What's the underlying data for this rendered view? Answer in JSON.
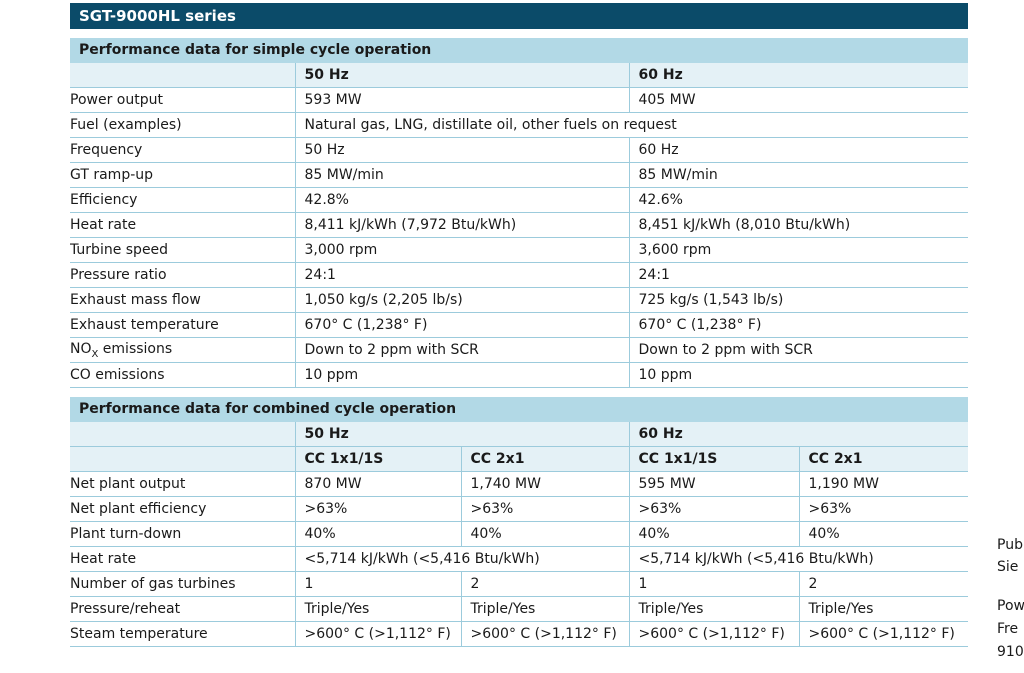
{
  "series_title": "SGT-9000HL series",
  "simple": {
    "title": "Performance data for simple cycle operation",
    "col_50": "50 Hz",
    "col_60": "60 Hz",
    "rows": [
      {
        "label": "Power output",
        "v50": "593 MW",
        "v60": "405 MW"
      },
      {
        "label": "Fuel (examples)",
        "span": "Natural gas, LNG, distillate oil, other fuels on request"
      },
      {
        "label": "Frequency",
        "v50": "50 Hz",
        "v60": "60 Hz"
      },
      {
        "label": "GT ramp-up",
        "v50": "85 MW/min",
        "v60": "85 MW/min"
      },
      {
        "label": "Efficiency",
        "v50": "42.8%",
        "v60": "42.6%"
      },
      {
        "label": "Heat rate",
        "v50": "8,411 kJ/kWh (7,972 Btu/kWh)",
        "v60": "8,451 kJ/kWh (8,010 Btu/kWh)"
      },
      {
        "label": "Turbine speed",
        "v50": "3,000 rpm",
        "v60": "3,600 rpm"
      },
      {
        "label": "Pressure ratio",
        "v50": "24:1",
        "v60": "24:1"
      },
      {
        "label": "Exhaust mass flow",
        "v50": "1,050 kg/s (2,205 lb/s)",
        "v60": "725 kg/s (1,543 lb/s)"
      },
      {
        "label": "Exhaust temperature",
        "v50": "670° C (1,238° F)",
        "v60": "670° C (1,238° F)"
      },
      {
        "label": "NO",
        "label_sub": "X",
        "label_tail": " emissions",
        "v50": "Down to 2 ppm with SCR",
        "v60": "Down to 2 ppm with SCR"
      },
      {
        "label": "CO emissions",
        "v50": "10 ppm",
        "v60": "10 ppm"
      }
    ]
  },
  "combined": {
    "title": "Performance data for combined cycle operation",
    "col_50": "50 Hz",
    "col_60": "60 Hz",
    "sub_headers": [
      "CC 1x1/1S",
      "CC 2x1",
      "CC 1x1/1S",
      "CC 2x1"
    ],
    "rows": [
      {
        "label": "Net plant output",
        "cells": [
          "870 MW",
          "1,740 MW",
          "595 MW",
          "1,190 MW"
        ]
      },
      {
        "label": "Net plant efficiency",
        "cells": [
          ">63%",
          ">63%",
          ">63%",
          ">63%"
        ]
      },
      {
        "label": "Plant turn-down",
        "cells": [
          "40%",
          "40%",
          "40%",
          "40%"
        ]
      },
      {
        "label": "Heat rate",
        "span50": "<5,714 kJ/kWh (<5,416 Btu/kWh)",
        "span60": "<5,714 kJ/kWh (<5,416 Btu/kWh)"
      },
      {
        "label": "Number of gas turbines",
        "cells": [
          "1",
          "2",
          "1",
          "2"
        ]
      },
      {
        "label": "Pressure/reheat",
        "cells": [
          "Triple/Yes",
          "Triple/Yes",
          "Triple/Yes",
          "Triple/Yes"
        ]
      },
      {
        "label": "Steam temperature",
        "cells": [
          ">600° C (>1,112° F)",
          ">600° C (>1,112° F)",
          ">600° C (>1,112° F)",
          ">600° C (>1,112° F)"
        ]
      }
    ]
  },
  "margin_text": [
    "Pub",
    "Sie",
    "Pow",
    "Fre",
    "910"
  ]
}
